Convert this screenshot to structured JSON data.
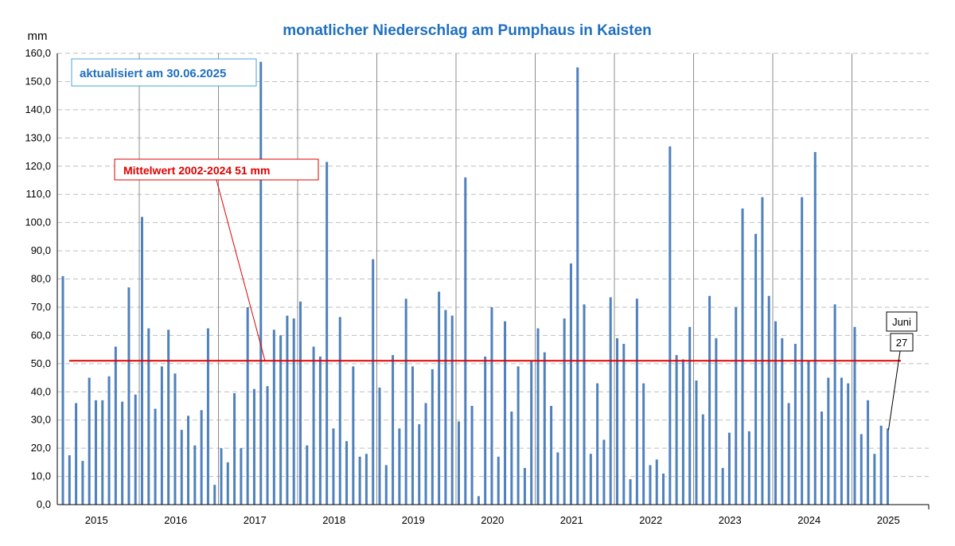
{
  "chart_data": {
    "type": "bar",
    "title": "monatlicher Niederschlag am Pumphaus in Kaisten",
    "ylabel": "mm",
    "xlabel": "",
    "ylim": [
      0,
      160
    ],
    "yticks": [
      "0,0",
      "10,0",
      "20,0",
      "30,0",
      "40,0",
      "50,0",
      "60,0",
      "70,0",
      "80,0",
      "90,0",
      "100,0",
      "110,0",
      "120,0",
      "130,0",
      "140,0",
      "150,0",
      "160,0"
    ],
    "years": [
      "2015",
      "2016",
      "2017",
      "2018",
      "2019",
      "2020",
      "2021",
      "2022",
      "2023",
      "2024",
      "2025"
    ],
    "grid": true,
    "series": [
      {
        "color": "#4f81bd",
        "values": [
          81,
          17.5,
          36,
          15.5,
          45,
          37,
          37,
          45.5,
          56,
          36.5,
          77,
          39,
          102,
          62.5,
          34,
          49,
          62,
          46.5,
          26.5,
          31.5,
          21,
          33.5,
          62.5,
          7,
          20,
          15,
          39.5,
          20,
          70,
          41,
          157,
          42,
          62,
          60,
          67,
          66,
          72,
          21,
          56,
          52.5,
          121.5,
          27,
          66.5,
          22.5,
          49,
          17,
          18,
          87,
          41.5,
          14,
          53,
          27,
          73,
          49,
          28.5,
          36,
          48,
          75.5,
          69,
          67,
          29.5,
          116,
          35,
          3,
          52.5,
          70,
          17,
          65,
          33,
          49,
          13,
          51,
          62.5,
          54,
          35,
          18.5,
          66,
          85.5,
          155,
          71,
          18,
          43,
          23,
          73.5,
          59,
          57,
          9,
          73,
          43,
          14,
          16,
          11,
          127,
          53,
          51.5,
          63,
          44,
          32,
          74,
          59,
          13,
          25.5,
          70,
          105,
          26,
          96,
          109,
          74,
          65,
          59,
          36,
          57,
          109,
          51,
          125,
          33,
          45,
          71,
          45,
          43,
          63,
          25,
          37,
          18,
          28,
          27
        ]
      }
    ],
    "mean_line": {
      "label": "Mittelwert 2002-2024  51 mm",
      "value": 51,
      "color": "#e00000"
    },
    "annotations": {
      "updated": "aktualisiert am 30.06.2025",
      "last_month": "Juni",
      "last_value": "27"
    }
  }
}
